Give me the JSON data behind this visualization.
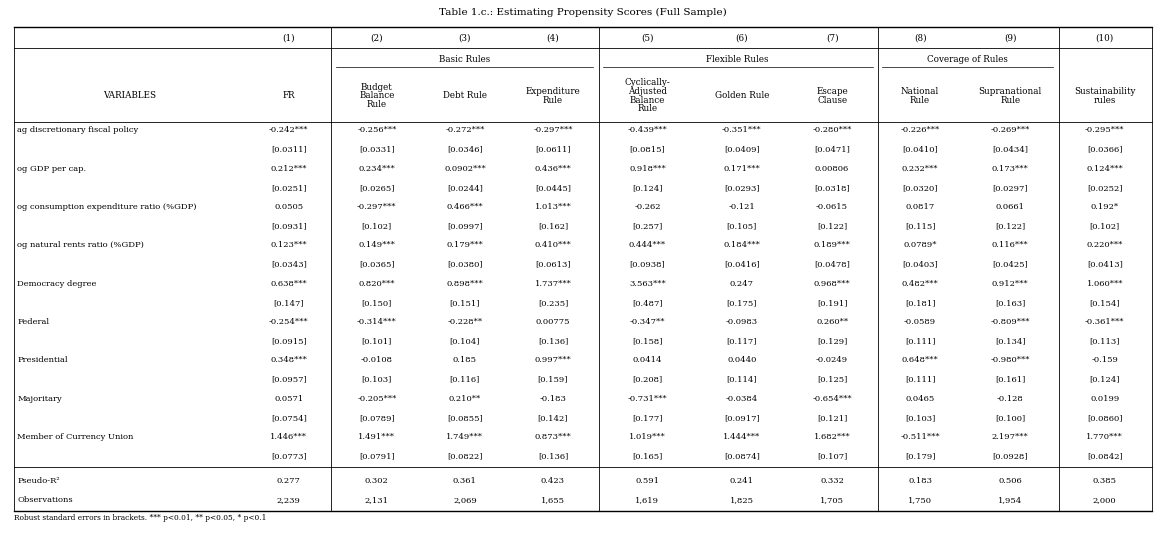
{
  "title": "Table 1.c.: Estimating Propensity Scores (Full Sample)",
  "col_numbers": [
    "(1)",
    "(2)",
    "(3)",
    "(4)",
    "(5)",
    "(6)",
    "(7)",
    "(8)",
    "(9)",
    "(10)"
  ],
  "group_labels": {
    "Basic Rules": [
      1,
      3
    ],
    "Flexible Rules": [
      4,
      6
    ],
    "Coverage of Rules": [
      7,
      8
    ]
  },
  "col_subheaders": [
    [
      "FR"
    ],
    [
      "Budget",
      "Balance",
      "Rule"
    ],
    [
      "Debt Rule"
    ],
    [
      "Expenditure",
      "Rule"
    ],
    [
      "Cyclically-",
      "Adjusted",
      "Balance",
      "Rule"
    ],
    [
      "Golden Rule"
    ],
    [
      "Escape",
      "Clause"
    ],
    [
      "National",
      "Rule"
    ],
    [
      "Supranational",
      "Rule"
    ],
    [
      "Sustainability",
      "rules"
    ]
  ],
  "variables": [
    "ag discretionary fiscal policy",
    "og GDP per cap.",
    "og consumption expenditure ratio (%GDP)",
    "og natural rents ratio (%GDP)",
    "Democracy degree",
    "Federal",
    "Presidential",
    "Majoritary",
    "Member of Currency Union"
  ],
  "data": [
    [
      "-0.242***",
      "-0.256***",
      "-0.272***",
      "-0.297***",
      "-0.439***",
      "-0.351***",
      "-0.280***",
      "-0.226***",
      "-0.269***",
      "-0.295***"
    ],
    [
      "[0.0311]",
      "[0.0331]",
      "[0.0346]",
      "[0.0611]",
      "[0.0815]",
      "[0.0409]",
      "[0.0471]",
      "[0.0410]",
      "[0.0434]",
      "[0.0366]"
    ],
    [
      "0.212***",
      "0.234***",
      "0.0902***",
      "0.436***",
      "0.918***",
      "0.171***",
      "0.00806",
      "0.232***",
      "0.173***",
      "0.124***"
    ],
    [
      "[0.0251]",
      "[0.0265]",
      "[0.0244]",
      "[0.0445]",
      "[0.124]",
      "[0.0293]",
      "[0.0318]",
      "[0.0320]",
      "[0.0297]",
      "[0.0252]"
    ],
    [
      "0.0505",
      "-0.297***",
      "0.466***",
      "1.013***",
      "-0.262",
      "-0.121",
      "-0.0615",
      "0.0817",
      "0.0661",
      "0.192*"
    ],
    [
      "[0.0931]",
      "[0.102]",
      "[0.0997]",
      "[0.162]",
      "[0.257]",
      "[0.105]",
      "[0.122]",
      "[0.115]",
      "[0.122]",
      "[0.102]"
    ],
    [
      "0.123***",
      "0.149***",
      "0.179***",
      "0.410***",
      "0.444***",
      "0.184***",
      "0.189***",
      "0.0789*",
      "0.116***",
      "0.220***"
    ],
    [
      "[0.0343]",
      "[0.0365]",
      "[0.0380]",
      "[0.0613]",
      "[0.0938]",
      "[0.0416]",
      "[0.0478]",
      "[0.0403]",
      "[0.0425]",
      "[0.0413]"
    ],
    [
      "0.638***",
      "0.820***",
      "0.898***",
      "1.737***",
      "3.563***",
      "0.247",
      "0.968***",
      "0.482***",
      "0.912***",
      "1.060***"
    ],
    [
      "[0.147]",
      "[0.150]",
      "[0.151]",
      "[0.235]",
      "[0.487]",
      "[0.175]",
      "[0.191]",
      "[0.181]",
      "[0.163]",
      "[0.154]"
    ],
    [
      "-0.254***",
      "-0.314***",
      "-0.228**",
      "0.00775",
      "-0.347**",
      "-0.0983",
      "0.260**",
      "-0.0589",
      "-0.809***",
      "-0.361***"
    ],
    [
      "[0.0915]",
      "[0.101]",
      "[0.104]",
      "[0.136]",
      "[0.158]",
      "[0.117]",
      "[0.129]",
      "[0.111]",
      "[0.134]",
      "[0.113]"
    ],
    [
      "0.348***",
      "-0.0108",
      "0.185",
      "0.997***",
      "0.0414",
      "0.0440",
      "-0.0249",
      "0.648***",
      "-0.980***",
      "-0.159"
    ],
    [
      "[0.0957]",
      "[0.103]",
      "[0.116]",
      "[0.159]",
      "[0.208]",
      "[0.114]",
      "[0.125]",
      "[0.111]",
      "[0.161]",
      "[0.124]"
    ],
    [
      "0.0571",
      "-0.205***",
      "0.210**",
      "-0.183",
      "-0.731***",
      "-0.0384",
      "-0.654***",
      "0.0465",
      "-0.128",
      "0.0199"
    ],
    [
      "[0.0754]",
      "[0.0789]",
      "[0.0855]",
      "[0.142]",
      "[0.177]",
      "[0.0917]",
      "[0.121]",
      "[0.103]",
      "[0.100]",
      "[0.0860]"
    ],
    [
      "1.446***",
      "1.491***",
      "1.749***",
      "0.873***",
      "1.019***",
      "1.444***",
      "1.682***",
      "-0.511***",
      "2.197***",
      "1.770***"
    ],
    [
      "[0.0773]",
      "[0.0791]",
      "[0.0822]",
      "[0.136]",
      "[0.165]",
      "[0.0874]",
      "[0.107]",
      "[0.179]",
      "[0.0928]",
      "[0.0842]"
    ]
  ],
  "footer_labels": [
    "Pseudo-R²",
    "Observations"
  ],
  "footer_data": [
    [
      "0.277",
      "0.302",
      "0.361",
      "0.423",
      "0.591",
      "0.241",
      "0.332",
      "0.183",
      "0.506",
      "0.385"
    ],
    [
      "2,239",
      "2,131",
      "2,069",
      "1,655",
      "1,619",
      "1,825",
      "1,705",
      "1,750",
      "1,954",
      "2,000"
    ]
  ],
  "footnote": "Robust standard errors in brackets. *** p<0.01, ** p<0.05, * p<0.1",
  "col_widths_rel": [
    2.7,
    1.0,
    1.05,
    1.0,
    1.05,
    1.15,
    1.05,
    1.05,
    1.0,
    1.1,
    1.1
  ],
  "fig_width": 11.66,
  "fig_height": 5.44,
  "dpi": 100
}
